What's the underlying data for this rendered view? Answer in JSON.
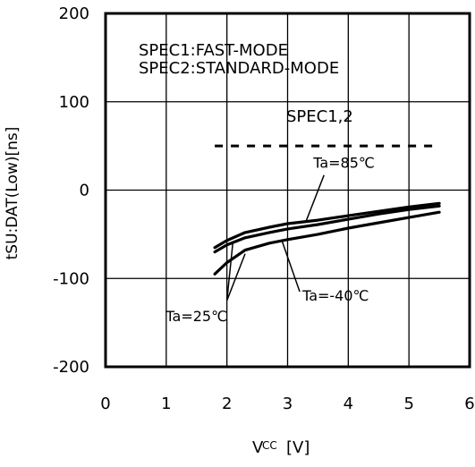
{
  "chart_data": {
    "type": "line",
    "title": "",
    "xlabel_main": "V",
    "xlabel_sub": "CC",
    "xlabel_unit": "[V]",
    "ylabel": "tSU:DAT(Low)[ns]",
    "xlim": [
      0,
      6
    ],
    "ylim": [
      -200,
      200
    ],
    "x_ticks": [
      0,
      1,
      2,
      3,
      4,
      5,
      6
    ],
    "y_ticks": [
      -200,
      -100,
      0,
      100,
      200
    ],
    "x_tick_labels": [
      "0",
      "1",
      "2",
      "3",
      "4",
      "5",
      "6"
    ],
    "y_tick_labels": [
      "-200",
      "-100",
      "0",
      "100",
      "200"
    ],
    "grid": true,
    "spec_note_1": "SPEC1:FAST-MODE",
    "spec_note_2": "SPEC2:STANDARD-MODE",
    "spec_label": "SPEC1,2",
    "spec_line": {
      "y": 50,
      "x_range": [
        1.8,
        5.5
      ],
      "style": "dashed"
    },
    "series": [
      {
        "name": "Ta=85℃",
        "x": [
          1.8,
          2.0,
          2.3,
          2.7,
          3.0,
          3.5,
          4.0,
          4.5,
          5.0,
          5.5
        ],
        "values": [
          -65,
          -57,
          -48,
          -42,
          -38,
          -34,
          -29,
          -24,
          -19,
          -15
        ]
      },
      {
        "name": "Ta=25℃",
        "x": [
          1.8,
          2.0,
          2.3,
          2.7,
          3.0,
          3.5,
          4.0,
          4.5,
          5.0,
          5.5
        ],
        "values": [
          -70,
          -62,
          -54,
          -48,
          -44,
          -39,
          -33,
          -27,
          -22,
          -18
        ]
      },
      {
        "name": "Ta=-40℃",
        "x": [
          1.8,
          2.0,
          2.3,
          2.7,
          3.0,
          3.5,
          4.0,
          4.5,
          5.0,
          5.5
        ],
        "values": [
          -95,
          -82,
          -68,
          -60,
          -56,
          -50,
          -43,
          -37,
          -31,
          -25
        ]
      }
    ],
    "annotations": [
      {
        "text": "Ta=85℃",
        "label_x": 3.6,
        "label_y": 17,
        "target_x": 3.3,
        "target_y": -36
      },
      {
        "text": "Ta=-40℃",
        "label_x": 3.2,
        "label_y": -115,
        "target_x": 2.9,
        "target_y": -56
      },
      {
        "text": "Ta=25℃",
        "label_x": 1.2,
        "label_y": -140
      },
      {
        "text": "",
        "label_x": 2.0,
        "label_y": -125,
        "target_x": 2.1,
        "target_y": -58
      },
      {
        "text": "",
        "label_x": 2.0,
        "label_y": -125,
        "target_x": 2.3,
        "target_y": -72
      }
    ]
  }
}
